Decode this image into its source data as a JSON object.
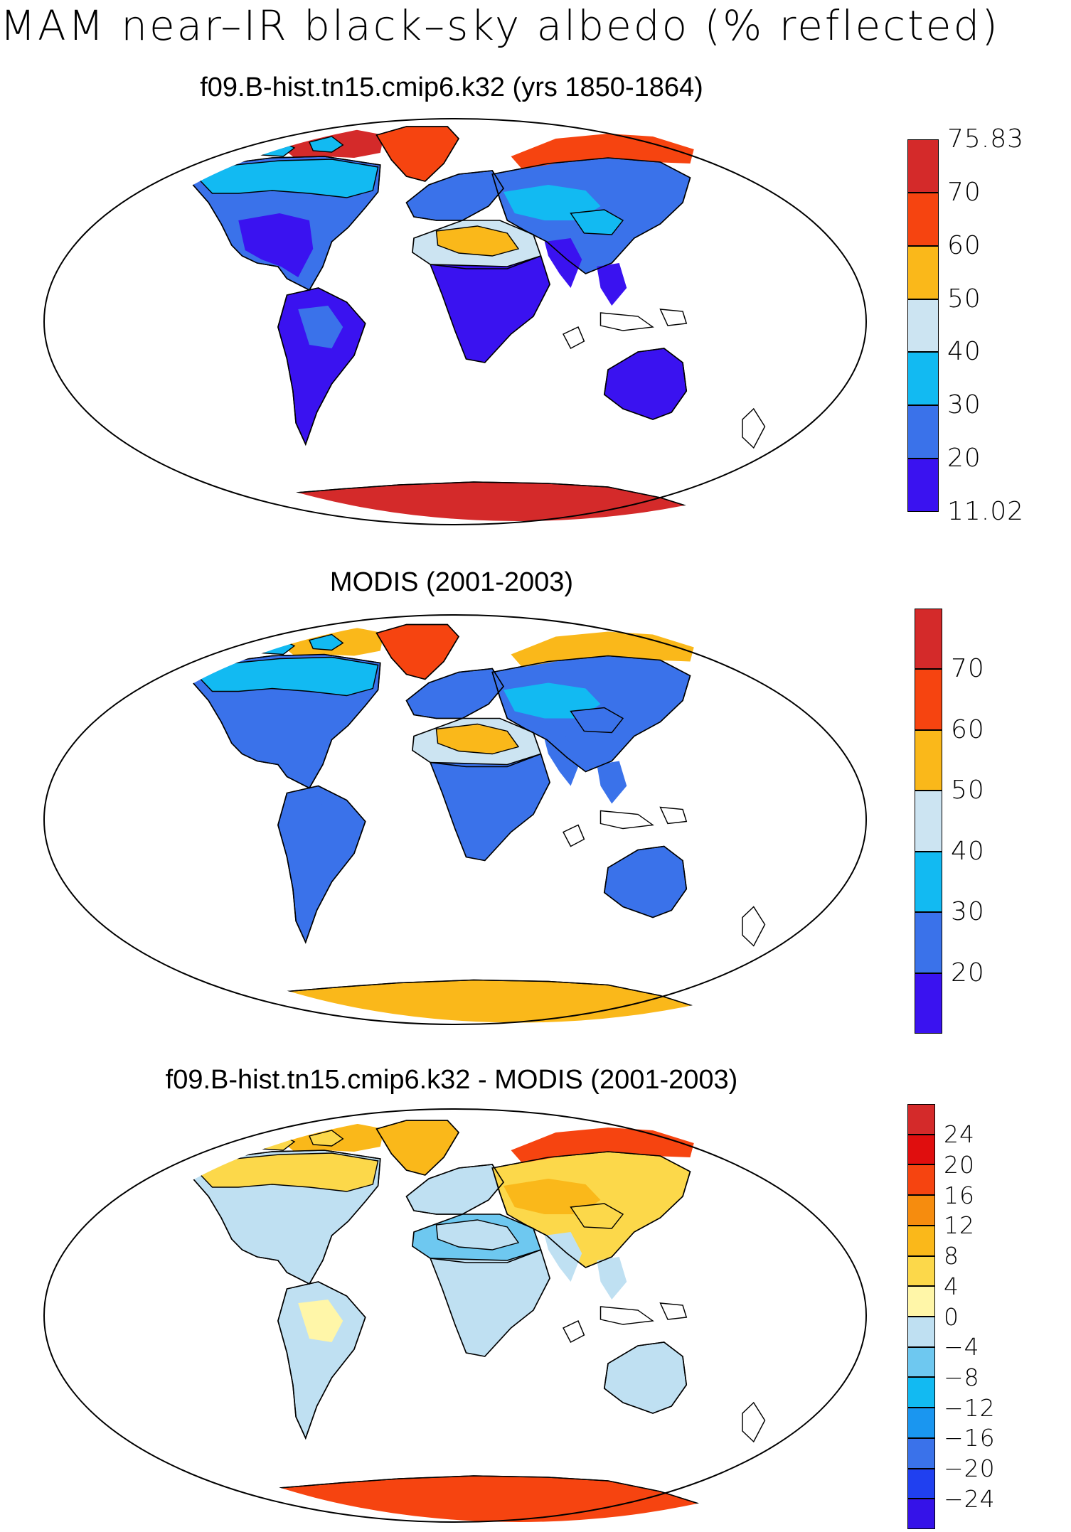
{
  "title": "MAM near–IR black–sky albedo (% reflected)",
  "panels": [
    {
      "title": "f09.B-hist.tn15.cmip6.k32 (yrs 1850-1864)",
      "colorbar": {
        "colors": [
          "#3a12f0",
          "#3a72ea",
          "#12baf2",
          "#cce4f2",
          "#fab81a",
          "#f64410",
          "#d42a2a"
        ],
        "labels": [
          "11.02",
          "20",
          "30",
          "40",
          "50",
          "60",
          "70",
          "75.83"
        ]
      },
      "regions": {
        "north_america": "#3a72ea",
        "north_america_interior": "#3a12f0",
        "canada": "#12baf2",
        "arctic_islands": "#d42a2a",
        "greenland": "#f64410",
        "south_america": "#3a12f0",
        "south_america_inner": "#3a72ea",
        "africa_north": "#cce4f2",
        "sahara": "#fab81a",
        "africa_south": "#3a12f0",
        "europe": "#3a72ea",
        "asia": "#3a72ea",
        "siberia_north": "#f64410",
        "central_asia": "#12baf2",
        "tibet": "#12baf2",
        "india_se_asia": "#3a12f0",
        "australia": "#3a12f0",
        "antarctica": "#d42a2a"
      }
    },
    {
      "title": "MODIS (2001-2003)",
      "colorbar": {
        "colors": [
          "#3a12f0",
          "#3a72ea",
          "#12baf2",
          "#cce4f2",
          "#fab81a",
          "#f64410",
          "#d42a2a"
        ],
        "labels": [
          "",
          "20",
          "30",
          "40",
          "50",
          "60",
          "70",
          ""
        ]
      },
      "regions": {
        "north_america": "#3a72ea",
        "north_america_interior": "#3a72ea",
        "canada": "#12baf2",
        "arctic_islands": "#fab81a",
        "greenland": "#f64410",
        "south_america": "#3a72ea",
        "south_america_inner": "#3a72ea",
        "africa_north": "#cce4f2",
        "sahara": "#fab81a",
        "africa_south": "#3a72ea",
        "europe": "#3a72ea",
        "asia": "#3a72ea",
        "siberia_north": "#fab81a",
        "central_asia": "#12baf2",
        "tibet": "#3a72ea",
        "india_se_asia": "#3a72ea",
        "australia": "#3a72ea",
        "antarctica": "#fab81a"
      }
    },
    {
      "title": "f09.B-hist.tn15.cmip6.k32 - MODIS (2001-2003)",
      "colorbar": {
        "colors": [
          "#3512e8",
          "#2040f0",
          "#3a72ea",
          "#1a96f0",
          "#12baf2",
          "#6ec8f0",
          "#bfe0f2",
          "#fff6a8",
          "#fcd84a",
          "#fab81a",
          "#f68c0e",
          "#f64410",
          "#e00e0e",
          "#d42a2a"
        ],
        "labels": [
          "",
          "−24",
          "−20",
          "−16",
          "−12",
          "−8",
          "−4",
          "0",
          "4",
          "8",
          "12",
          "16",
          "20",
          "24",
          ""
        ]
      },
      "regions": {
        "north_america": "#bfe0f2",
        "north_america_interior": "#bfe0f2",
        "canada": "#fcd84a",
        "arctic_islands": "#fab81a",
        "greenland": "#fab81a",
        "south_america": "#bfe0f2",
        "south_america_inner": "#fff6a8",
        "africa_north": "#6ec8f0",
        "sahara": "#bfe0f2",
        "africa_south": "#bfe0f2",
        "europe": "#bfe0f2",
        "asia": "#fcd84a",
        "siberia_north": "#f64410",
        "central_asia": "#fab81a",
        "tibet": "#fcd84a",
        "india_se_asia": "#bfe0f2",
        "australia": "#bfe0f2",
        "antarctica": "#f64410"
      }
    }
  ]
}
